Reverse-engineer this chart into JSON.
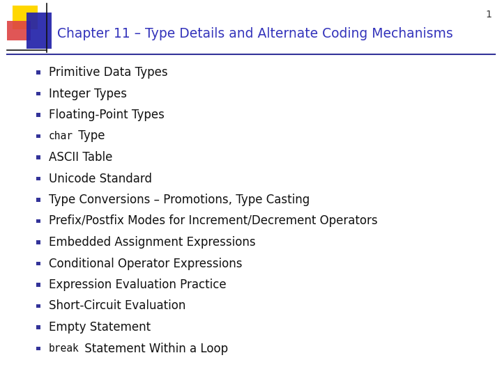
{
  "title": "Chapter 11 – Type Details and Alternate Coding Mechanisms",
  "title_color": "#3333BB",
  "title_fontsize": 13.5,
  "page_number": "1",
  "background_color": "#FFFFFF",
  "bullet_items": [
    {
      "text": "Primitive Data Types",
      "mono_prefix": null
    },
    {
      "text": "Integer Types",
      "mono_prefix": null
    },
    {
      "text": "Floating-Point Types",
      "mono_prefix": null
    },
    {
      "text": " Type",
      "mono_prefix": "char"
    },
    {
      "text": "ASCII Table",
      "mono_prefix": null
    },
    {
      "text": "Unicode Standard",
      "mono_prefix": null
    },
    {
      "text": "Type Conversions – Promotions, Type Casting",
      "mono_prefix": null
    },
    {
      "text": "Prefix/Postfix Modes for Increment/Decrement Operators",
      "mono_prefix": null
    },
    {
      "text": "Embedded Assignment Expressions",
      "mono_prefix": null
    },
    {
      "text": "Conditional Operator Expressions",
      "mono_prefix": null
    },
    {
      "text": "Expression Evaluation Practice",
      "mono_prefix": null
    },
    {
      "text": "Short-Circuit Evaluation",
      "mono_prefix": null
    },
    {
      "text": "Empty Statement",
      "mono_prefix": null
    },
    {
      "text": " Statement Within a Loop",
      "mono_prefix": "break"
    }
  ],
  "bullet_text_color": "#111111",
  "bullet_text_fontsize": 12.0,
  "mono_fontsize": 10.5,
  "square_bullet_color": "#333399",
  "logo_yellow": "#FFD700",
  "logo_red": "#DD4444",
  "logo_blue": "#2222AA",
  "divider_color": "#333399",
  "divider_thickness": 1.5,
  "header_line_color": "#111111"
}
